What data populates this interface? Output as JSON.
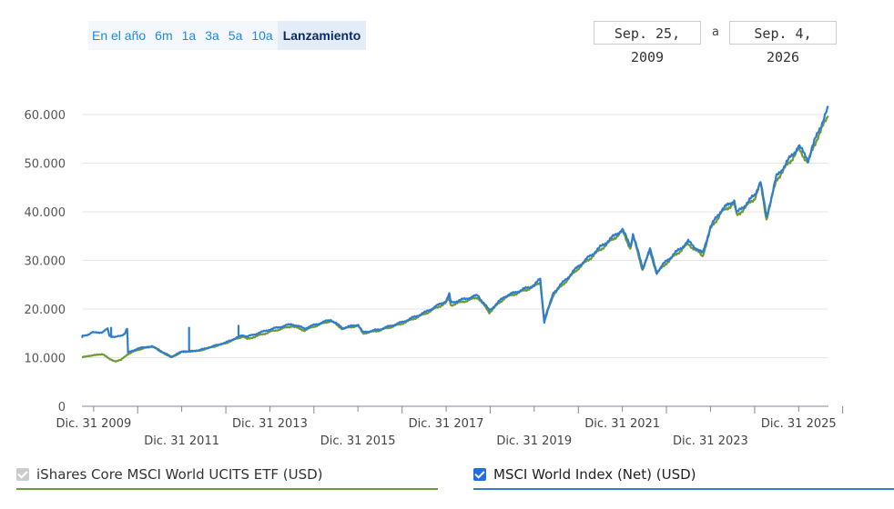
{
  "range_selector": {
    "tabs": [
      "En el año",
      "6m",
      "1a",
      "3a",
      "5a",
      "10a",
      "Lanzamiento"
    ],
    "active": "Lanzamiento"
  },
  "date_range": {
    "from": "Sep. 25, 2009",
    "separator": "a",
    "to": "Sep. 4, 2026"
  },
  "legend": {
    "etf_label": "iShares Core MSCI World UCITS ETF (USD)",
    "index_label": "MSCI World Index (Net) (USD)"
  },
  "colors": {
    "etf": "#6d9b35",
    "index": "#2f7dd1",
    "grid": "#e6e6e6",
    "accent": "#1e88e5"
  },
  "chart_data": {
    "type": "line",
    "ylim": [
      0,
      65000
    ],
    "y_ticks": [
      0,
      10000,
      20000,
      30000,
      40000,
      50000,
      60000
    ],
    "y_tick_labels": [
      "0",
      "10.000",
      "20.000",
      "30.000",
      "40.000",
      "50.000",
      "60.000"
    ],
    "xlim": [
      "2009-09-25",
      "2026-09-04"
    ],
    "x_ticks": [
      {
        "date": "2009-12-31",
        "label": "Dic. 31 2009",
        "row": 1
      },
      {
        "date": "2011-12-31",
        "label": "Dic. 31 2011",
        "row": 2
      },
      {
        "date": "2013-12-31",
        "label": "Dic. 31 2013",
        "row": 1
      },
      {
        "date": "2015-12-31",
        "label": "Dic. 31 2015",
        "row": 2
      },
      {
        "date": "2017-12-31",
        "label": "Dic. 31 2017",
        "row": 1
      },
      {
        "date": "2019-12-31",
        "label": "Dic. 31 2019",
        "row": 2
      },
      {
        "date": "2021-12-31",
        "label": "Dic. 31 2021",
        "row": 1
      },
      {
        "date": "2023-12-31",
        "label": "Dic. 31 2023",
        "row": 2
      },
      {
        "date": "2025-12-31",
        "label": "Dic. 31 2025",
        "row": 1
      }
    ],
    "series": [
      {
        "name": "iShares Core MSCI World UCITS ETF (USD)",
        "points": [
          [
            "2009-09-25",
            10000
          ],
          [
            "2009-11-15",
            10400
          ],
          [
            "2010-01-20",
            10500
          ],
          [
            "2010-03-15",
            10800
          ],
          [
            "2010-05-10",
            9700
          ],
          [
            "2010-07-01",
            9300
          ],
          [
            "2010-08-15",
            9500
          ],
          [
            "2010-10-01",
            10600
          ],
          [
            "2010-12-31",
            11600
          ],
          [
            "2011-04-30",
            12400
          ],
          [
            "2011-08-10",
            10900
          ],
          [
            "2011-10-05",
            10000
          ],
          [
            "2011-12-31",
            11200
          ],
          [
            "2012-05-20",
            11400
          ],
          [
            "2012-12-31",
            13000
          ],
          [
            "2013-05-20",
            14400
          ],
          [
            "2013-06-25",
            13800
          ],
          [
            "2013-12-31",
            15300
          ],
          [
            "2014-06-30",
            16500
          ],
          [
            "2014-10-15",
            15600
          ],
          [
            "2014-12-31",
            16400
          ],
          [
            "2015-05-20",
            17600
          ],
          [
            "2015-08-25",
            15900
          ],
          [
            "2015-12-31",
            16600
          ],
          [
            "2016-02-10",
            15000
          ],
          [
            "2016-06-27",
            15600
          ],
          [
            "2016-12-31",
            17000
          ],
          [
            "2017-06-30",
            18900
          ],
          [
            "2017-12-31",
            21300
          ],
          [
            "2018-01-26",
            22300
          ],
          [
            "2018-02-08",
            20800
          ],
          [
            "2018-09-20",
            22400
          ],
          [
            "2018-12-24",
            19300
          ],
          [
            "2019-04-30",
            22300
          ],
          [
            "2019-12-31",
            24600
          ],
          [
            "2020-02-19",
            25600
          ],
          [
            "2020-03-23",
            17800
          ],
          [
            "2020-06-08",
            23000
          ],
          [
            "2020-12-31",
            28400
          ],
          [
            "2021-06-30",
            32200
          ],
          [
            "2021-12-31",
            36000
          ],
          [
            "2022-03-07",
            32500
          ],
          [
            "2022-03-29",
            35000
          ],
          [
            "2022-06-16",
            28100
          ],
          [
            "2022-08-16",
            31900
          ],
          [
            "2022-10-12",
            27300
          ],
          [
            "2022-12-31",
            29500
          ],
          [
            "2023-06-30",
            33400
          ],
          [
            "2023-10-27",
            30900
          ],
          [
            "2023-12-31",
            36400
          ],
          [
            "2024-03-28",
            39800
          ],
          [
            "2024-07-15",
            41800
          ],
          [
            "2024-08-05",
            39200
          ],
          [
            "2024-12-31",
            42800
          ],
          [
            "2025-02-18",
            45800
          ],
          [
            "2025-04-08",
            38500
          ],
          [
            "2025-06-30",
            46600
          ],
          [
            "2025-12-31",
            52800
          ],
          [
            "2026-03-20",
            50200
          ],
          [
            "2026-06-15",
            56000
          ],
          [
            "2026-08-20",
            58900
          ],
          [
            "2026-09-04",
            60100
          ]
        ]
      },
      {
        "name": "MSCI World Index (Net) (USD)",
        "points": [
          [
            "2009-09-25",
            14000
          ],
          [
            "2009-10-01",
            14400
          ],
          [
            "2009-11-15",
            14800
          ],
          [
            "2009-12-20",
            15200
          ],
          [
            "2010-01-20",
            15100
          ],
          [
            "2010-03-15",
            15300
          ],
          [
            "2010-04-26",
            15900
          ],
          [
            "2010-05-10",
            14500
          ],
          [
            "2010-06-15",
            14300
          ],
          [
            "2010-07-01",
            14200
          ],
          [
            "2010-08-15",
            14500
          ],
          [
            "2010-09-15",
            15000
          ],
          [
            "2010-09-28",
            15800
          ],
          [
            "2010-10-05",
            15900
          ],
          [
            "2010-10-12",
            11000
          ],
          [
            "2010-12-31",
            11900
          ],
          [
            "2011-04-30",
            12300
          ],
          [
            "2011-08-10",
            10900
          ],
          [
            "2011-10-05",
            10200
          ],
          [
            "2011-12-31",
            11200
          ],
          [
            "2012-05-20",
            11500
          ],
          [
            "2012-12-31",
            13100
          ],
          [
            "2013-05-20",
            14700
          ],
          [
            "2013-06-25",
            14300
          ],
          [
            "2013-12-31",
            15800
          ],
          [
            "2014-06-30",
            16900
          ],
          [
            "2014-10-15",
            16000
          ],
          [
            "2014-12-31",
            16700
          ],
          [
            "2015-05-20",
            17800
          ],
          [
            "2015-08-25",
            16100
          ],
          [
            "2015-12-31",
            16800
          ],
          [
            "2016-02-10",
            15200
          ],
          [
            "2016-06-27",
            15800
          ],
          [
            "2016-12-31",
            17300
          ],
          [
            "2017-06-30",
            19200
          ],
          [
            "2017-12-31",
            21700
          ],
          [
            "2018-01-26",
            23000
          ],
          [
            "2018-02-08",
            21300
          ],
          [
            "2018-09-20",
            22800
          ],
          [
            "2018-12-24",
            19700
          ],
          [
            "2019-04-30",
            22600
          ],
          [
            "2019-12-31",
            24900
          ],
          [
            "2020-02-19",
            26200
          ],
          [
            "2020-03-23",
            17400
          ],
          [
            "2020-06-08",
            23400
          ],
          [
            "2020-12-31",
            28800
          ],
          [
            "2021-06-30",
            32700
          ],
          [
            "2021-12-31",
            36400
          ],
          [
            "2022-03-07",
            32900
          ],
          [
            "2022-03-29",
            35500
          ],
          [
            "2022-06-16",
            28400
          ],
          [
            "2022-08-16",
            32300
          ],
          [
            "2022-10-12",
            27600
          ],
          [
            "2022-12-31",
            29900
          ],
          [
            "2023-06-30",
            33900
          ],
          [
            "2023-10-27",
            31400
          ],
          [
            "2023-12-31",
            36900
          ],
          [
            "2024-03-28",
            40300
          ],
          [
            "2024-07-15",
            42400
          ],
          [
            "2024-08-05",
            39700
          ],
          [
            "2024-12-31",
            43400
          ],
          [
            "2025-02-18",
            46300
          ],
          [
            "2025-04-08",
            38900
          ],
          [
            "2025-06-30",
            47200
          ],
          [
            "2025-12-31",
            53500
          ],
          [
            "2026-03-20",
            50800
          ],
          [
            "2026-06-15",
            56800
          ],
          [
            "2026-08-20",
            60500
          ],
          [
            "2026-09-04",
            61200
          ]
        ],
        "spikes": [
          {
            "date": "2010-05-25",
            "value": 16200
          },
          {
            "date": "2012-03-01",
            "value": 16100
          },
          {
            "date": "2013-04-15",
            "value": 16400
          }
        ]
      }
    ]
  }
}
